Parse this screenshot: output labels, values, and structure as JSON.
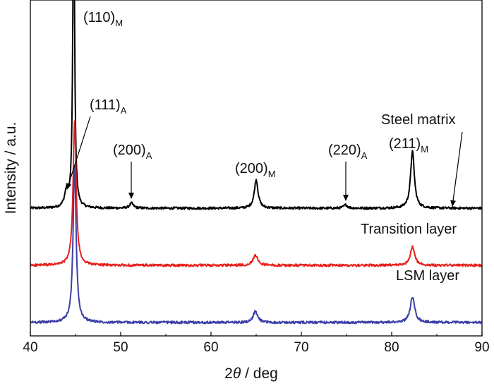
{
  "chart_data": {
    "type": "line",
    "title": "",
    "xlabel_prefix": "2",
    "xlabel_symbol": "θ",
    "xlabel_suffix": " / deg",
    "ylabel": "Intensity / a.u.",
    "xlim": [
      40,
      90
    ],
    "ylim": [
      0,
      100
    ],
    "xticks": [
      40,
      50,
      60,
      70,
      80,
      90
    ],
    "colors": {
      "steel": "#000000",
      "transition": "#e8211c",
      "lsm": "#3b3fa6"
    },
    "series": [
      {
        "name": "Steel matrix",
        "color": "#000000",
        "baseline": 38,
        "peaks": [
          {
            "x": 44.0,
            "height": 4.5,
            "width": 0.25
          },
          {
            "x": 44.8,
            "height": 95,
            "width": 0.12
          },
          {
            "x": 51.2,
            "height": 1.5,
            "width": 0.25
          },
          {
            "x": 65.0,
            "height": 8.5,
            "width": 0.25
          },
          {
            "x": 74.9,
            "height": 1.0,
            "width": 0.25
          },
          {
            "x": 82.3,
            "height": 17,
            "width": 0.25
          }
        ]
      },
      {
        "name": "Transition layer",
        "color": "#e8211c",
        "baseline": 21,
        "peaks": [
          {
            "x": 44.9,
            "height": 43,
            "width": 0.2
          },
          {
            "x": 64.9,
            "height": 3.2,
            "width": 0.3
          },
          {
            "x": 82.3,
            "height": 5.5,
            "width": 0.3
          }
        ]
      },
      {
        "name": "LSM layer",
        "color": "#3b3fa6",
        "baseline": 4,
        "peaks": [
          {
            "x": 44.9,
            "height": 47,
            "width": 0.2
          },
          {
            "x": 64.9,
            "height": 3.2,
            "width": 0.3
          },
          {
            "x": 82.3,
            "height": 7.5,
            "width": 0.3
          }
        ]
      }
    ],
    "peak_labels": [
      {
        "id": "110M",
        "base": "(110)",
        "sub": "M"
      },
      {
        "id": "111A",
        "base": "(111)",
        "sub": "A"
      },
      {
        "id": "200A",
        "base": "(200)",
        "sub": "A"
      },
      {
        "id": "200M",
        "base": "(200)",
        "sub": "M"
      },
      {
        "id": "220A",
        "base": "(220)",
        "sub": "A"
      },
      {
        "id": "211M",
        "base": "(211)",
        "sub": "M"
      }
    ],
    "curve_labels": {
      "steel": "Steel matrix",
      "transition": "Transition layer",
      "lsm": "LSM layer"
    }
  }
}
